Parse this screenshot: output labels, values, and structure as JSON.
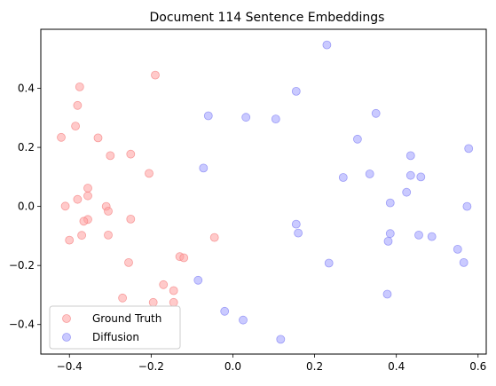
{
  "chart_data": {
    "type": "scatter",
    "title": "Document 114 Sentence Embeddings",
    "xlabel": "",
    "ylabel": "",
    "xlim": [
      -0.47,
      0.62
    ],
    "ylim": [
      -0.5,
      0.6
    ],
    "xticks": [
      -0.4,
      -0.2,
      0.0,
      0.2,
      0.4,
      0.6
    ],
    "xtick_labels": [
      "−0.4",
      "−0.2",
      "0.0",
      "0.2",
      "0.4",
      "0.6"
    ],
    "yticks": [
      -0.4,
      -0.2,
      0.0,
      0.2,
      0.4
    ],
    "ytick_labels": [
      "−0.4",
      "−0.2",
      "0.0",
      "0.2",
      "0.4"
    ],
    "grid": false,
    "legend_position": "lower-left",
    "series": [
      {
        "name": "Ground Truth",
        "color": "#ff9f9f",
        "edge_color": "#f47f7f",
        "points": [
          [
            -0.19,
            0.445
          ],
          [
            -0.375,
            0.405
          ],
          [
            -0.38,
            0.342
          ],
          [
            -0.385,
            0.272
          ],
          [
            -0.42,
            0.234
          ],
          [
            -0.33,
            0.232
          ],
          [
            -0.25,
            0.177
          ],
          [
            -0.3,
            0.172
          ],
          [
            -0.205,
            0.112
          ],
          [
            -0.355,
            0.062
          ],
          [
            -0.355,
            0.036
          ],
          [
            -0.38,
            0.024
          ],
          [
            -0.41,
            0.001
          ],
          [
            -0.31,
            0.0
          ],
          [
            -0.305,
            -0.016
          ],
          [
            -0.25,
            -0.043
          ],
          [
            -0.355,
            -0.044
          ],
          [
            -0.365,
            -0.05
          ],
          [
            -0.37,
            -0.098
          ],
          [
            -0.305,
            -0.097
          ],
          [
            -0.045,
            -0.105
          ],
          [
            -0.4,
            -0.114
          ],
          [
            -0.13,
            -0.17
          ],
          [
            -0.12,
            -0.174
          ],
          [
            -0.255,
            -0.19
          ],
          [
            -0.17,
            -0.265
          ],
          [
            -0.145,
            -0.285
          ],
          [
            -0.27,
            -0.31
          ],
          [
            -0.195,
            -0.325
          ],
          [
            -0.145,
            -0.325
          ]
        ]
      },
      {
        "name": "Diffusion",
        "color": "#9f9fff",
        "edge_color": "#7f7ff4",
        "points": [
          [
            0.23,
            0.547
          ],
          [
            0.155,
            0.39
          ],
          [
            0.35,
            0.315
          ],
          [
            -0.06,
            0.307
          ],
          [
            0.032,
            0.302
          ],
          [
            0.105,
            0.296
          ],
          [
            0.305,
            0.228
          ],
          [
            0.577,
            0.196
          ],
          [
            0.435,
            0.172
          ],
          [
            -0.072,
            0.13
          ],
          [
            0.335,
            0.11
          ],
          [
            0.435,
            0.105
          ],
          [
            0.46,
            0.1
          ],
          [
            0.27,
            0.098
          ],
          [
            0.425,
            0.048
          ],
          [
            0.385,
            0.012
          ],
          [
            0.573,
            0.0
          ],
          [
            0.155,
            -0.06
          ],
          [
            0.16,
            -0.09
          ],
          [
            0.385,
            -0.092
          ],
          [
            0.455,
            -0.097
          ],
          [
            0.487,
            -0.102
          ],
          [
            0.38,
            -0.118
          ],
          [
            0.55,
            -0.145
          ],
          [
            0.565,
            -0.19
          ],
          [
            0.235,
            -0.192
          ],
          [
            -0.085,
            -0.25
          ],
          [
            0.378,
            -0.297
          ],
          [
            -0.02,
            -0.355
          ],
          [
            0.025,
            -0.385
          ],
          [
            0.117,
            -0.45
          ]
        ]
      }
    ]
  }
}
